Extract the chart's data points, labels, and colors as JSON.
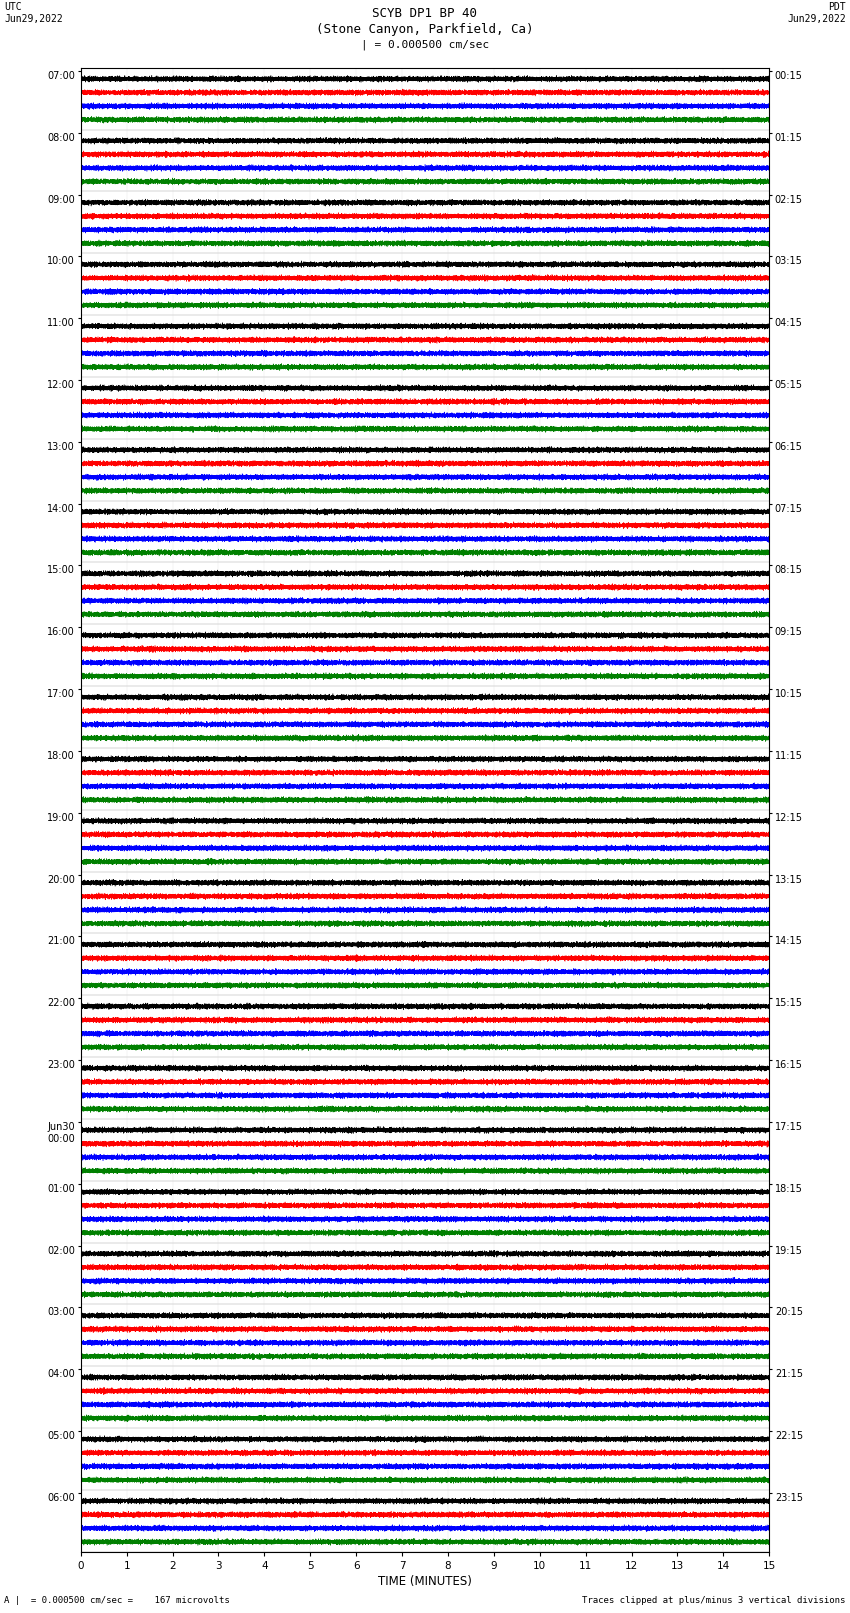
{
  "title_line1": "SCYB DP1 BP 40",
  "title_line2": "(Stone Canyon, Parkfield, Ca)",
  "scale_text": "| = 0.000500 cm/sec",
  "left_date_label": "UTC\nJun29,2022",
  "right_date_label": "PDT\nJun29,2022",
  "bottom_xlabel": "TIME (MINUTES)",
  "footer_left": "A |  = 0.000500 cm/sec =    167 microvolts",
  "footer_right": "Traces clipped at plus/minus 3 vertical divisions",
  "trace_colors": [
    "black",
    "red",
    "blue",
    "green"
  ],
  "bg_color": "#ffffff",
  "utc_times": [
    "07:00",
    "08:00",
    "09:00",
    "10:00",
    "11:00",
    "12:00",
    "13:00",
    "14:00",
    "15:00",
    "16:00",
    "17:00",
    "18:00",
    "19:00",
    "20:00",
    "21:00",
    "22:00",
    "23:00",
    "Jun30\n00:00",
    "01:00",
    "02:00",
    "03:00",
    "04:00",
    "05:00",
    "06:00"
  ],
  "pdt_times": [
    "00:15",
    "01:15",
    "02:15",
    "03:15",
    "04:15",
    "05:15",
    "06:15",
    "07:15",
    "08:15",
    "09:15",
    "10:15",
    "11:15",
    "12:15",
    "13:15",
    "14:15",
    "15:15",
    "16:15",
    "17:15",
    "18:15",
    "19:15",
    "20:15",
    "21:15",
    "22:15",
    "23:15"
  ],
  "n_hours": 24,
  "traces_per_hour": 4,
  "minutes": 15,
  "sample_rate": 40,
  "noise_amp": 0.06,
  "trace_amp_scale": 0.12,
  "fig_width": 8.5,
  "fig_height": 16.13,
  "dpi": 100
}
